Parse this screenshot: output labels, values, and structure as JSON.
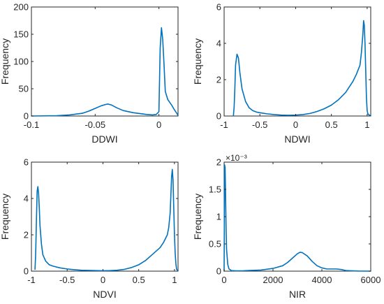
{
  "chart_data": [
    {
      "type": "line",
      "xlabel": "DDWI",
      "ylabel": "Frequency",
      "xlim": [
        -0.1,
        0.015
      ],
      "ylim": [
        0,
        200
      ],
      "xticks": [
        -0.1,
        -0.05,
        0
      ],
      "xtick_labels": [
        "-0.1",
        "-0.05",
        "0"
      ],
      "yticks": [
        0,
        50,
        100,
        150,
        200
      ],
      "ytick_labels": [
        "0",
        "50",
        "100",
        "150",
        "200"
      ],
      "exponent_label": "",
      "color": "#0072BD",
      "series": [
        {
          "x": [
            -0.1,
            -0.08,
            -0.07,
            -0.06,
            -0.055,
            -0.05,
            -0.045,
            -0.042,
            -0.04,
            -0.037,
            -0.033,
            -0.028,
            -0.02,
            -0.01,
            -0.005,
            -0.002,
            0,
            0.001,
            0.002,
            0.003,
            0.004,
            0.005,
            0.007,
            0.01,
            0.012,
            0.014,
            0.015
          ],
          "y": [
            0,
            0.5,
            2,
            5,
            9,
            14,
            19,
            21,
            22,
            20,
            15,
            10,
            6,
            3,
            2,
            3,
            8,
            125,
            162,
            140,
            95,
            45,
            30,
            20,
            12,
            5,
            1
          ]
        }
      ]
    },
    {
      "type": "line",
      "xlabel": "NDWI",
      "ylabel": "Frequency",
      "xlim": [
        -1,
        1.05
      ],
      "ylim": [
        0,
        6
      ],
      "xticks": [
        -1,
        -0.5,
        0,
        0.5,
        1
      ],
      "xtick_labels": [
        "-1",
        "-0.5",
        "0",
        "0.5",
        "1"
      ],
      "yticks": [
        0,
        2,
        4,
        6
      ],
      "ytick_labels": [
        "0",
        "2",
        "4",
        "6"
      ],
      "exponent_label": "",
      "color": "#0072BD",
      "series": [
        {
          "x": [
            -0.87,
            -0.86,
            -0.85,
            -0.84,
            -0.82,
            -0.8,
            -0.78,
            -0.75,
            -0.7,
            -0.65,
            -0.6,
            -0.55,
            -0.5,
            -0.4,
            -0.3,
            -0.2,
            -0.1,
            0,
            0.1,
            0.2,
            0.3,
            0.4,
            0.5,
            0.6,
            0.7,
            0.8,
            0.85,
            0.9,
            0.92,
            0.94,
            0.95,
            0.96,
            0.97,
            0.98,
            0.99,
            1.0,
            1.01,
            1.03,
            1.05
          ],
          "y": [
            0.02,
            0.5,
            1.5,
            2.8,
            3.4,
            3.2,
            2.4,
            1.5,
            0.8,
            0.45,
            0.3,
            0.22,
            0.18,
            0.12,
            0.08,
            0.05,
            0.04,
            0.05,
            0.08,
            0.14,
            0.25,
            0.4,
            0.6,
            0.9,
            1.3,
            1.9,
            2.3,
            2.8,
            3.5,
            4.5,
            5.25,
            5.0,
            4.0,
            2.5,
            1.0,
            0.3,
            0.12,
            0.05,
            0.02
          ]
        }
      ]
    },
    {
      "type": "line",
      "xlabel": "NDVI",
      "ylabel": "Frequency",
      "xlim": [
        -1,
        1.05
      ],
      "ylim": [
        0,
        6
      ],
      "xticks": [
        -1,
        -0.5,
        0,
        0.5,
        1
      ],
      "xtick_labels": [
        "-1",
        "-0.5",
        "0",
        "0.5",
        "1"
      ],
      "yticks": [
        0,
        2,
        4,
        6
      ],
      "ytick_labels": [
        "0",
        "2",
        "4",
        "6"
      ],
      "exponent_label": "",
      "color": "#0072BD",
      "series": [
        {
          "x": [
            -0.95,
            -0.94,
            -0.93,
            -0.92,
            -0.91,
            -0.9,
            -0.89,
            -0.88,
            -0.86,
            -0.84,
            -0.8,
            -0.75,
            -0.7,
            -0.6,
            -0.5,
            -0.4,
            -0.3,
            -0.2,
            -0.1,
            0,
            0.1,
            0.2,
            0.3,
            0.4,
            0.5,
            0.6,
            0.7,
            0.8,
            0.85,
            0.9,
            0.92,
            0.94,
            0.95,
            0.96,
            0.97,
            0.98,
            0.99,
            1.0,
            1.01,
            1.02,
            1.03,
            1.05
          ],
          "y": [
            0.1,
            1.0,
            2.8,
            4.4,
            4.65,
            4.3,
            3.5,
            2.5,
            1.5,
            0.9,
            0.55,
            0.35,
            0.28,
            0.18,
            0.12,
            0.08,
            0.05,
            0.04,
            0.03,
            0.02,
            0.03,
            0.05,
            0.1,
            0.2,
            0.35,
            0.6,
            0.95,
            1.3,
            1.6,
            2.0,
            2.4,
            3.2,
            4.2,
            5.2,
            5.6,
            5.0,
            3.5,
            2.0,
            1.0,
            0.4,
            0.1,
            0.02
          ]
        }
      ]
    },
    {
      "type": "line",
      "xlabel": "NIR",
      "ylabel": "Frequency",
      "xlim": [
        0,
        6000
      ],
      "ylim": [
        0,
        0.002
      ],
      "xticks": [
        0,
        2000,
        4000,
        6000
      ],
      "xtick_labels": [
        "0",
        "2000",
        "4000",
        "6000"
      ],
      "yticks": [
        0,
        0.0005,
        0.001,
        0.0015,
        0.002
      ],
      "ytick_labels": [
        "0",
        "0.5",
        "1",
        "1.5",
        "2"
      ],
      "exponent_label": "×10⁻³",
      "color": "#0072BD",
      "series": [
        {
          "x": [
            0,
            20,
            40,
            60,
            80,
            100,
            150,
            200,
            300,
            500,
            800,
            1000,
            1500,
            2000,
            2400,
            2600,
            2800,
            3000,
            3100,
            3200,
            3400,
            3600,
            3800,
            4000,
            4200,
            4400,
            4600,
            4800,
            5000,
            5500,
            6000
          ],
          "y": [
            0.0,
            0.00195,
            0.0019,
            0.0014,
            0.0008,
            0.0004,
            0.00012,
            4e-05,
            1e-05,
            5e-06,
            8e-06,
            1.2e-05,
            2e-05,
            5e-05,
            0.0001,
            0.00016,
            0.00024,
            0.00032,
            0.000345,
            0.00034,
            0.00028,
            0.00018,
            0.0001,
            6e-05,
            4e-05,
            4e-05,
            4e-05,
            3e-05,
            1e-05,
            2e-06,
            0.0
          ]
        }
      ]
    }
  ]
}
